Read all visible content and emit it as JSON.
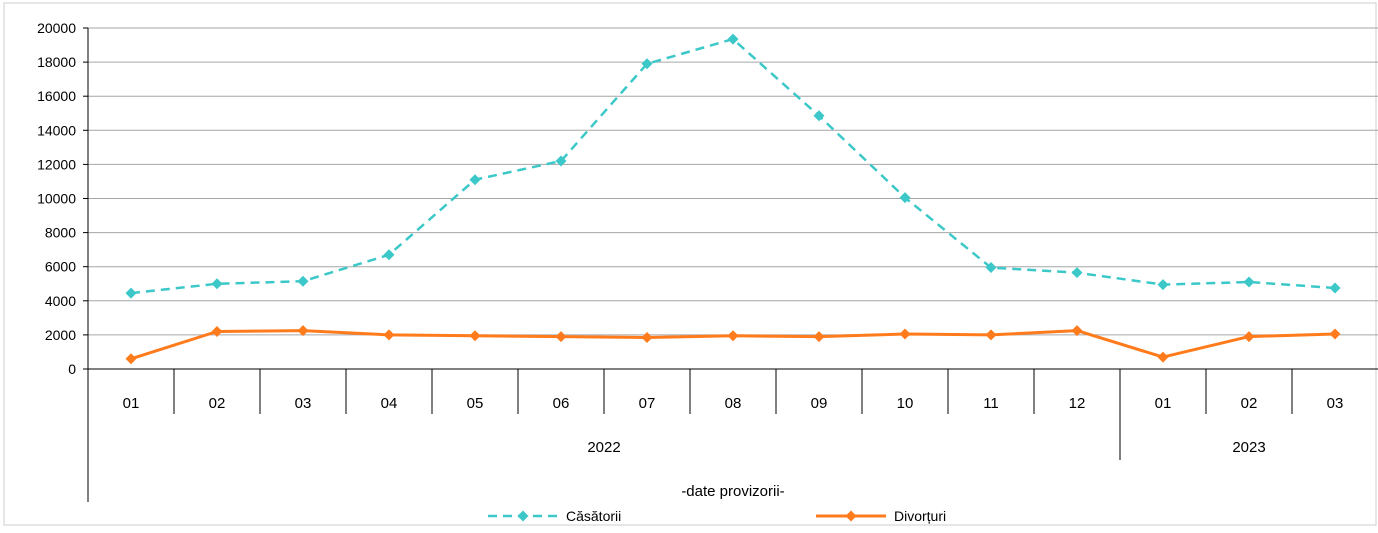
{
  "chart_data": {
    "type": "line",
    "title": "",
    "xlabel": "",
    "ylabel": "",
    "ylim": [
      0,
      20000
    ],
    "yticks": [
      0,
      2000,
      4000,
      6000,
      8000,
      10000,
      12000,
      14000,
      16000,
      18000,
      20000
    ],
    "grid": true,
    "legend": "bottom-center",
    "categories": [
      "01",
      "02",
      "03",
      "04",
      "05",
      "06",
      "07",
      "08",
      "09",
      "10",
      "11",
      "12",
      "01",
      "02",
      "03"
    ],
    "groups": [
      {
        "label": "2022",
        "count": 12
      },
      {
        "label": "2023",
        "count": 3
      }
    ],
    "note": "-date provizorii-",
    "series": [
      {
        "name": "Căsătorii",
        "color": "#3CC8C8",
        "style": "dashed",
        "marker": "diamond",
        "values": [
          4450,
          5000,
          5150,
          6700,
          11100,
          12200,
          17900,
          19350,
          14850,
          10050,
          5950,
          5650,
          4950,
          5100,
          4750
        ]
      },
      {
        "name": "Divorțuri",
        "color": "#FF7B1C",
        "style": "solid",
        "marker": "diamond",
        "values": [
          600,
          2200,
          2250,
          2000,
          1950,
          1900,
          1850,
          1950,
          1900,
          2050,
          2000,
          2250,
          700,
          1900,
          2050
        ]
      }
    ]
  }
}
